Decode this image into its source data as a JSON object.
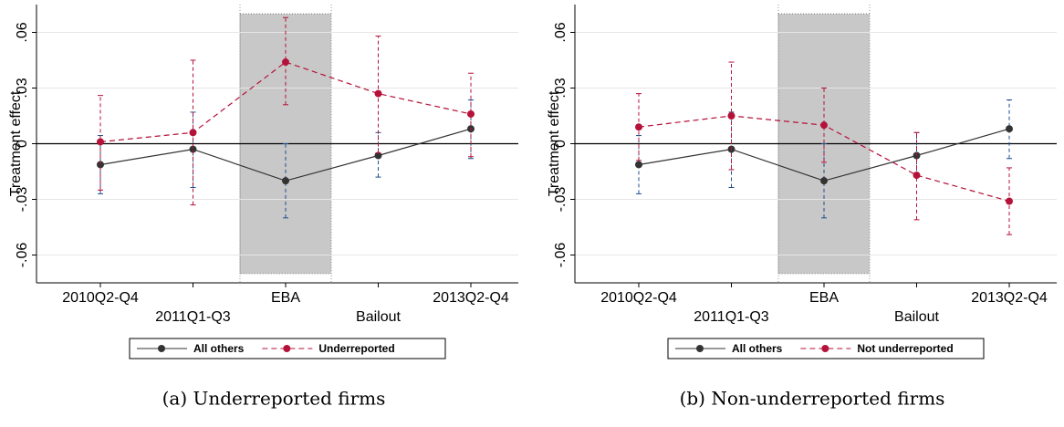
{
  "chart_data": [
    {
      "type": "line",
      "caption": "(a) Underreported firms",
      "ylabel": "Treatment effect",
      "categories": [
        "2010Q2-Q4",
        "2011Q1-Q3",
        "EBA",
        "Bailout",
        "2013Q2-Q4"
      ],
      "ylim": [
        -0.075,
        0.075
      ],
      "yticks": [
        {
          "value": -0.06,
          "label": "-.06"
        },
        {
          "value": -0.03,
          "label": "-.03"
        },
        0,
        {
          "value": 0.03,
          "label": ".03"
        },
        {
          "value": 0.06,
          "label": ".06"
        }
      ],
      "shade": {
        "x": "EBA",
        "ylim": [
          -0.07,
          0.07
        ]
      },
      "series": [
        {
          "name": "All others",
          "color": "#333333",
          "ci_color": "#1f4e8c",
          "dashed": false,
          "values": [
            -0.0113,
            -0.003,
            -0.02,
            -0.0064,
            0.008
          ],
          "lower": [
            -0.027,
            -0.0236,
            -0.04,
            -0.018,
            -0.008
          ],
          "upper": [
            0.0044,
            0.017,
            0.0,
            0.006,
            0.0236
          ]
        },
        {
          "name": "Underreported",
          "color": "#b5123a",
          "ci_color": "#b5123a",
          "dashed": true,
          "values": [
            0.001,
            0.006,
            0.044,
            0.027,
            0.016
          ],
          "lower": [
            -0.025,
            -0.033,
            0.021,
            -0.005,
            -0.007
          ],
          "upper": [
            0.026,
            0.045,
            0.068,
            0.058,
            0.038
          ]
        }
      ]
    },
    {
      "type": "line",
      "caption": "(b) Non-underreported firms",
      "ylabel": "Treatment effect",
      "categories": [
        "2010Q2-Q4",
        "2011Q1-Q3",
        "EBA",
        "Bailout",
        "2013Q2-Q4"
      ],
      "ylim": [
        -0.075,
        0.075
      ],
      "yticks": [
        {
          "value": -0.06,
          "label": "-.06"
        },
        {
          "value": -0.03,
          "label": "-.03"
        },
        0,
        {
          "value": 0.03,
          "label": ".03"
        },
        {
          "value": 0.06,
          "label": ".06"
        }
      ],
      "shade": {
        "x": "EBA",
        "ylim": [
          -0.07,
          0.07
        ]
      },
      "series": [
        {
          "name": "All others",
          "color": "#333333",
          "ci_color": "#1f4e8c",
          "dashed": false,
          "values": [
            -0.0113,
            -0.003,
            -0.02,
            -0.0064,
            0.008
          ],
          "lower": [
            -0.027,
            -0.0236,
            -0.04,
            -0.018,
            -0.008
          ],
          "upper": [
            0.0044,
            0.017,
            0.0,
            0.006,
            0.0236
          ]
        },
        {
          "name": "Not underreported",
          "color": "#b5123a",
          "ci_color": "#b5123a",
          "dashed": true,
          "values": [
            0.009,
            0.015,
            0.01,
            -0.017,
            -0.031
          ],
          "lower": [
            -0.009,
            -0.014,
            -0.01,
            -0.041,
            -0.049
          ],
          "upper": [
            0.027,
            0.044,
            0.03,
            0.006,
            -0.013
          ]
        }
      ]
    }
  ]
}
